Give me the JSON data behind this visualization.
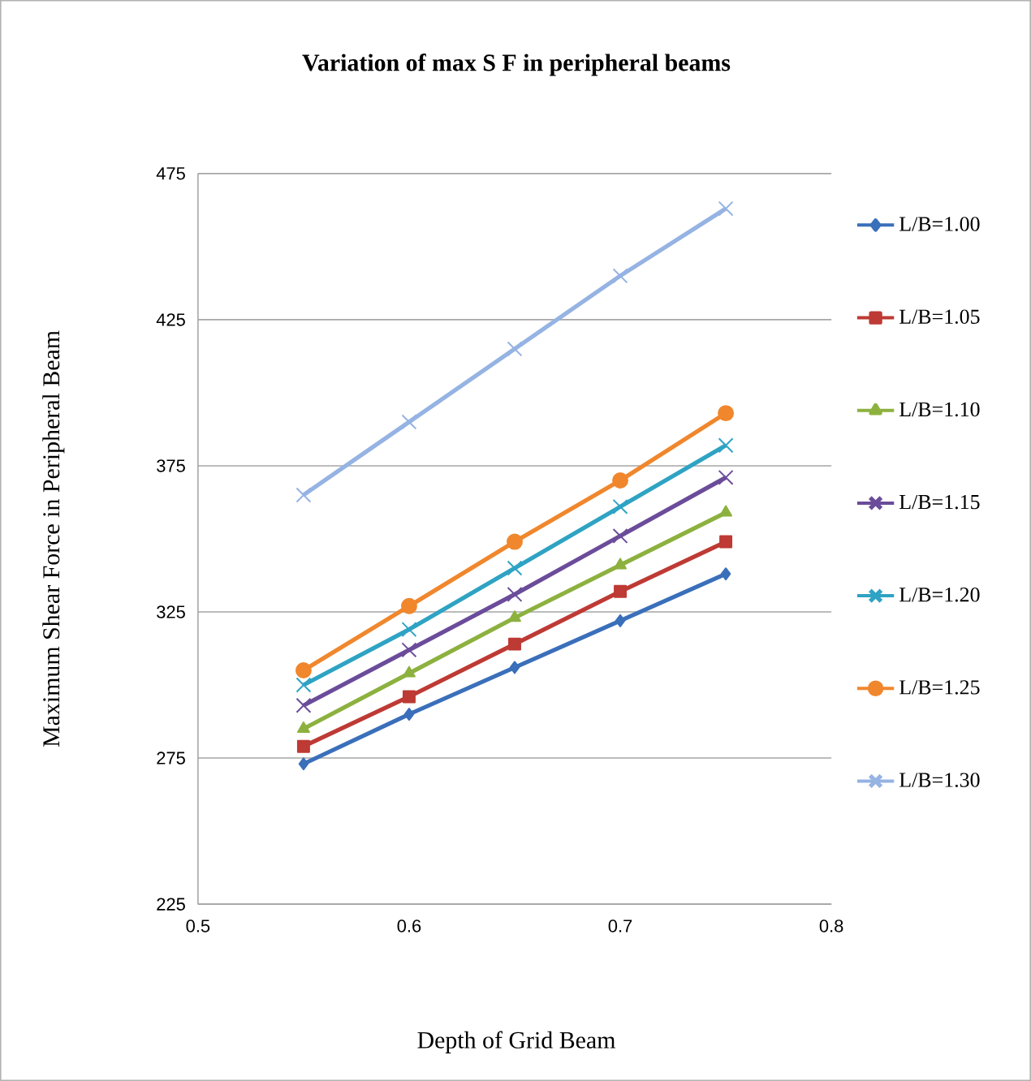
{
  "chart_data": {
    "type": "line",
    "title": "Variation of max S F in peripheral beams",
    "xlabel": "Depth of Grid Beam",
    "ylabel": "Maximum Shear Force  in Peripheral Beam",
    "x": [
      0.55,
      0.6,
      0.65,
      0.7,
      0.75
    ],
    "xlim": [
      0.5,
      0.8
    ],
    "xticks": [
      {
        "value": 0.5,
        "label": "0.5"
      },
      0.6,
      0.7,
      0.8
    ],
    "ylim": [
      225,
      475
    ],
    "yticks": [
      225,
      275,
      325,
      375,
      425,
      475
    ],
    "grid": "y",
    "legend": "right",
    "series": [
      {
        "name": "L/B=1.00",
        "color": "#3a6fba",
        "marker": "diamond",
        "values": [
          273,
          290,
          306,
          322,
          338
        ]
      },
      {
        "name": "L/B=1.05",
        "color": "#be3a34",
        "marker": "square",
        "values": [
          279,
          296,
          314,
          332,
          349
        ]
      },
      {
        "name": "L/B=1.10",
        "color": "#8db13f",
        "marker": "triangle",
        "values": [
          285,
          304,
          323,
          341,
          359
        ]
      },
      {
        "name": "L/B=1.15",
        "color": "#6b4c9a",
        "marker": "cross",
        "values": [
          293,
          312,
          331,
          351,
          371
        ]
      },
      {
        "name": "L/B=1.20",
        "color": "#2fa3c3",
        "marker": "cross",
        "values": [
          300,
          319,
          340,
          361,
          382
        ]
      },
      {
        "name": "L/B=1.25",
        "color": "#f0872d",
        "marker": "circle",
        "values": [
          305,
          327,
          349,
          370,
          393
        ]
      },
      {
        "name": "L/B=1.30",
        "color": "#95b3e3",
        "marker": "cross",
        "values": [
          365,
          390,
          415,
          440,
          463
        ]
      }
    ]
  }
}
